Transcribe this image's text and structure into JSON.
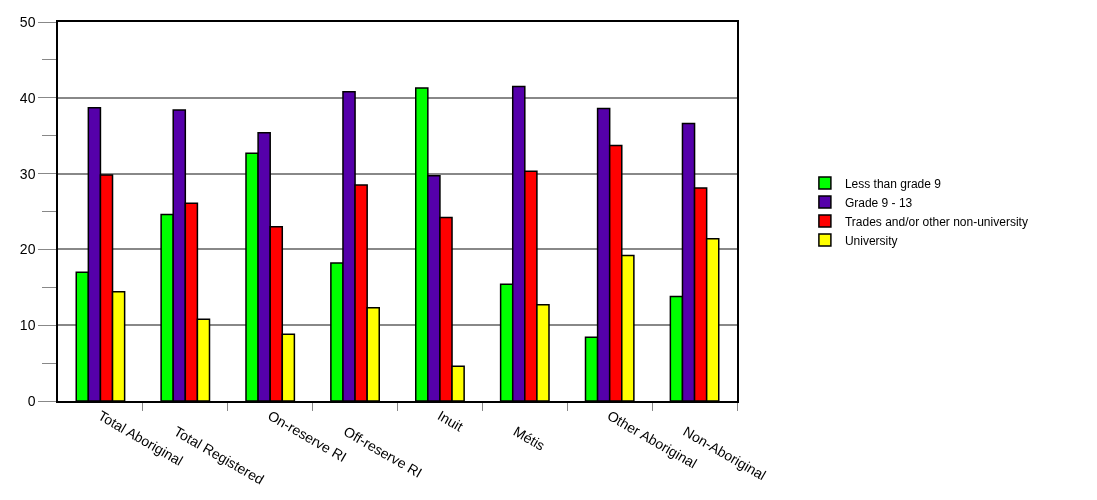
{
  "chart_data": {
    "type": "bar",
    "categories": [
      "Total Aboriginal",
      "Total Registered",
      "On-reserve RI",
      "Off-reserve RI",
      "Inuit",
      "Métis",
      "Other Aboriginal",
      "Non-Aboriginal"
    ],
    "series": [
      {
        "name": "Less than grade 9",
        "color": "#00ff00",
        "values": [
          17.0,
          24.6,
          32.7,
          18.2,
          41.3,
          15.4,
          8.4,
          13.8
        ]
      },
      {
        "name": "Grade 9 - 13",
        "color": "#5500aa",
        "values": [
          38.7,
          38.4,
          35.4,
          40.8,
          29.7,
          41.5,
          38.6,
          36.6
        ]
      },
      {
        "name": "Trades and/or other non-university",
        "color": "#ff0000",
        "values": [
          29.8,
          26.1,
          23.0,
          28.5,
          24.2,
          30.3,
          33.7,
          28.1
        ]
      },
      {
        "name": "University",
        "color": "#ffff00",
        "values": [
          14.4,
          10.8,
          8.8,
          12.3,
          4.6,
          12.7,
          19.2,
          21.4
        ]
      }
    ],
    "ylim": [
      0,
      50
    ],
    "yticks": [
      0,
      {
        "value": 5,
        "label": null
      },
      10,
      {
        "value": 15,
        "label": null
      },
      20,
      {
        "value": 25,
        "label": null
      },
      30,
      {
        "value": 35,
        "label": null
      },
      40,
      {
        "value": 45,
        "label": null
      },
      50
    ],
    "grid": "y",
    "legend": "right"
  }
}
